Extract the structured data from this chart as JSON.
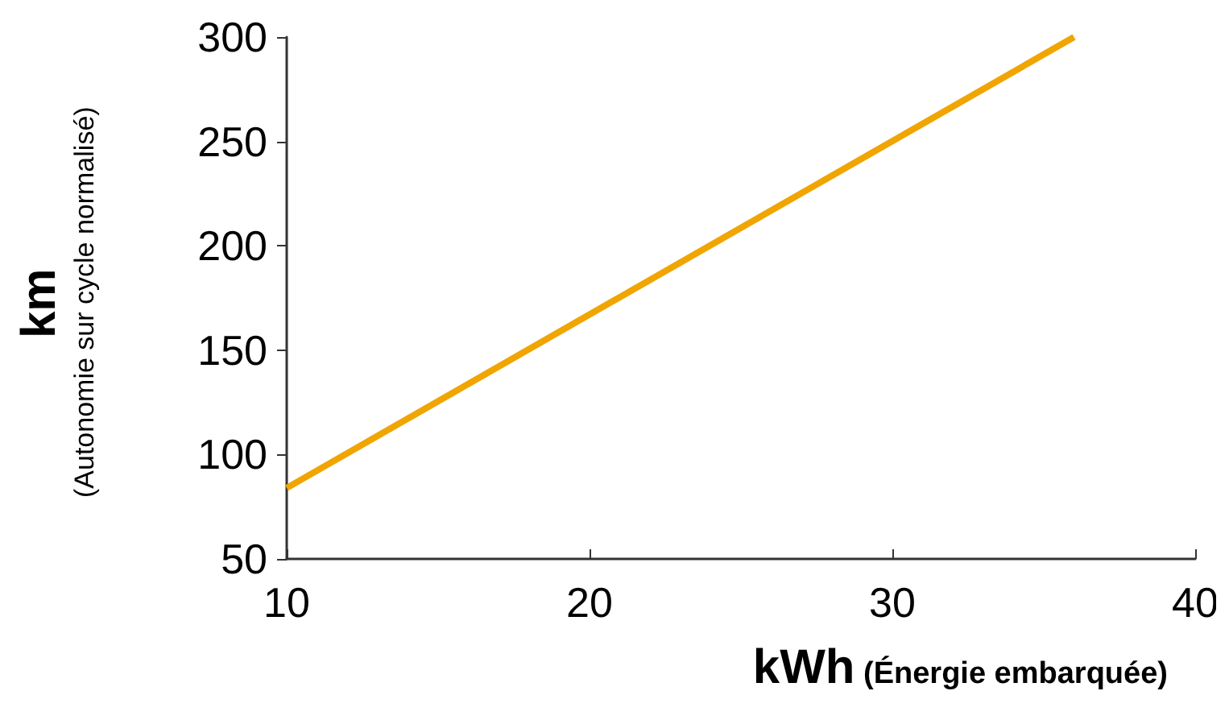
{
  "chart_data": {
    "type": "line",
    "xlabel": "kWh (Énergie embarquée)",
    "ylabel": "km (Autonomie sur cycle normalisé)",
    "x": [
      10,
      36
    ],
    "series": [
      {
        "color": "#f0a500",
        "values": [
          84,
          300
        ]
      }
    ],
    "xlim": [
      10,
      40
    ],
    "xticks": [
      10,
      20,
      30,
      40
    ],
    "ylim": [
      50,
      300
    ],
    "yticks": [
      50,
      100,
      150,
      200,
      250,
      300
    ],
    "grid": false,
    "marker": "none",
    "line_style": "solid"
  }
}
